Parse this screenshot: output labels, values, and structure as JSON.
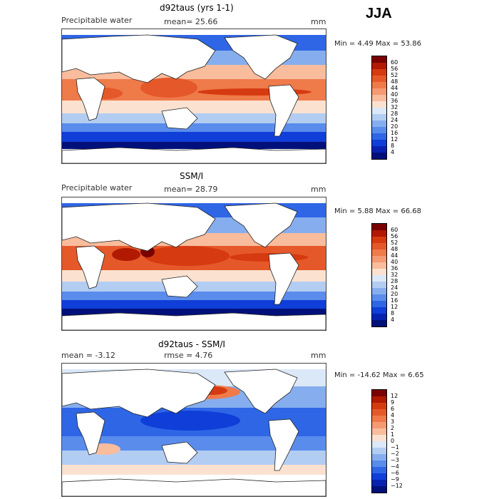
{
  "header": {
    "season": "JJA"
  },
  "panels": [
    {
      "title": "d92taus (yrs 1-1)",
      "left_label": "Precipitable water",
      "center_label": "mean=  25.66",
      "unit": "mm",
      "minmax": "Min =    4.49 Max =  53.86",
      "colorbar_labels": [
        "60",
        "56",
        "52",
        "48",
        "44",
        "40",
        "36",
        "32",
        "28",
        "24",
        "20",
        "16",
        "12",
        "8",
        "4"
      ]
    },
    {
      "title": "SSM/I",
      "left_label": "Precipitable water",
      "center_label": "mean=  28.79",
      "unit": "mm",
      "minmax": "Min =    5.88 Max =  66.68",
      "colorbar_labels": [
        "60",
        "56",
        "52",
        "48",
        "44",
        "40",
        "36",
        "32",
        "28",
        "24",
        "20",
        "16",
        "12",
        "8",
        "4"
      ]
    },
    {
      "title": "d92taus - SSM/I",
      "left_label": "mean =   -3.12",
      "center_label": "rmse =   4.76",
      "unit": "mm",
      "minmax": "Min = -14.62 Max =    6.65",
      "colorbar_labels": [
        "12",
        "9",
        "6",
        "4",
        "3",
        "2",
        "1",
        "0",
        "−1",
        "−2",
        "−3",
        "−4",
        "−6",
        "−9",
        "−12"
      ]
    }
  ],
  "colors": {
    "scale": [
      "#7a0000",
      "#b11a00",
      "#d63a10",
      "#e5582a",
      "#ef7a4a",
      "#f59a72",
      "#f9bc9c",
      "#fbe2d0",
      "#dbe8f8",
      "#b3cdf2",
      "#86aeee",
      "#5a8cec",
      "#2f66e6",
      "#0f3ed8",
      "#0822b0",
      "#00107a"
    ]
  }
}
